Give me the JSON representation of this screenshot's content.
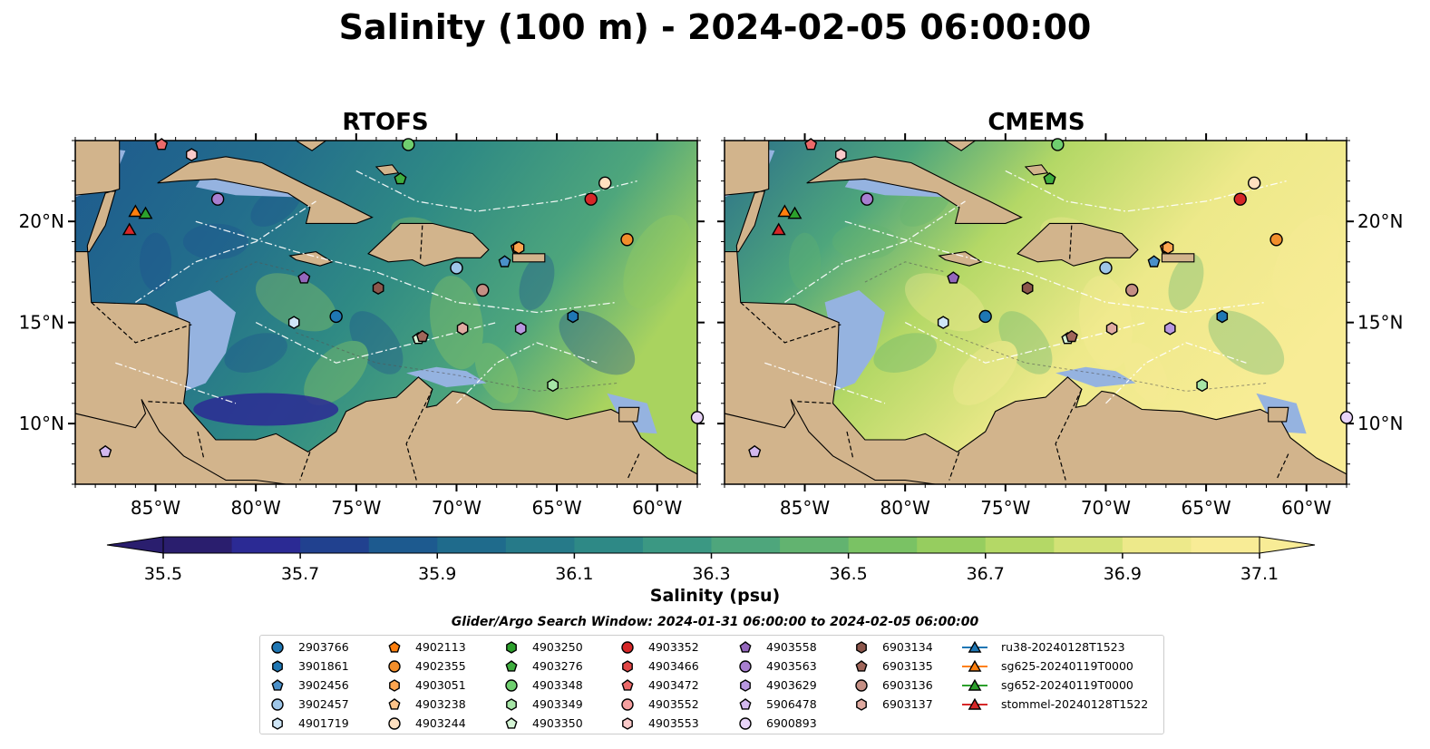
{
  "title": "Salinity (100 m) - 2024-02-05 06:00:00",
  "panels": [
    {
      "title": "RTOFS",
      "side": "left"
    },
    {
      "title": "CMEMS",
      "side": "right"
    }
  ],
  "map_extent": {
    "lon_min": -89,
    "lon_max": -58,
    "lat_min": 7,
    "lat_max": 24
  },
  "axis_ticks": {
    "lon": [
      {
        "value": -85,
        "label": "85°W"
      },
      {
        "value": -80,
        "label": "80°W"
      },
      {
        "value": -75,
        "label": "75°W"
      },
      {
        "value": -70,
        "label": "70°W"
      },
      {
        "value": -65,
        "label": "65°W"
      },
      {
        "value": -60,
        "label": "60°W"
      }
    ],
    "lat": [
      {
        "value": 20,
        "label": "20°N"
      },
      {
        "value": 15,
        "label": "15°N"
      },
      {
        "value": 10,
        "label": "10°N"
      }
    ]
  },
  "colorbar": {
    "title": "Salinity (psu)",
    "vmin": 35.5,
    "vmax": 37.1,
    "ticks": [
      "35.5",
      "35.7",
      "35.9",
      "36.1",
      "36.3",
      "36.5",
      "36.7",
      "36.9",
      "37.1"
    ],
    "colors": [
      "#2a1e6e",
      "#2b2a94",
      "#21418f",
      "#1d5a8f",
      "#1f6b8c",
      "#267a89",
      "#2e8986",
      "#3b9883",
      "#4ea67c",
      "#62b370",
      "#7ac264",
      "#96cd5f",
      "#b4d866",
      "#d2e276",
      "#ede98a",
      "#f8ec96"
    ]
  },
  "colors": {
    "land": "#d2b48c",
    "shelf": "#95b3e0",
    "deep_low": "#2a1a63"
  },
  "legend": {
    "title": "Glider/Argo Search Window: 2024-01-31 06:00:00 to 2024-02-05 06:00:00",
    "columns": [
      [
        {
          "id": "2903766",
          "marker": "circle",
          "color": "#1f77b4"
        },
        {
          "id": "3901861",
          "marker": "hexagon",
          "color": "#1f77b4"
        },
        {
          "id": "3902456",
          "marker": "pentagon",
          "color": "#4a90c9"
        },
        {
          "id": "3902457",
          "marker": "circle",
          "color": "#9ec6e8"
        },
        {
          "id": "4901719",
          "marker": "hexagon",
          "color": "#cfe6f7"
        }
      ],
      [
        {
          "id": "4902113",
          "marker": "pentagon",
          "color": "#ff7f0e"
        },
        {
          "id": "4902355",
          "marker": "circle",
          "color": "#f28e2b"
        },
        {
          "id": "4903051",
          "marker": "hexagon",
          "color": "#ffa54f"
        },
        {
          "id": "4903238",
          "marker": "pentagon",
          "color": "#ffc48a"
        },
        {
          "id": "4903244",
          "marker": "circle",
          "color": "#ffe0c0"
        }
      ],
      [
        {
          "id": "4903250",
          "marker": "hexagon",
          "color": "#2ca02c"
        },
        {
          "id": "4903276",
          "marker": "pentagon",
          "color": "#3fae3f"
        },
        {
          "id": "4903348",
          "marker": "circle",
          "color": "#6fcf6f"
        },
        {
          "id": "4903349",
          "marker": "hexagon",
          "color": "#a6e6a6"
        },
        {
          "id": "4903350",
          "marker": "pentagon",
          "color": "#d5f5d5"
        }
      ],
      [
        {
          "id": "4903352",
          "marker": "circle",
          "color": "#d62728"
        },
        {
          "id": "4903466",
          "marker": "hexagon",
          "color": "#e04545"
        },
        {
          "id": "4903472",
          "marker": "pentagon",
          "color": "#ec6a6a"
        },
        {
          "id": "4903552",
          "marker": "circle",
          "color": "#f5a0a0"
        },
        {
          "id": "4903553",
          "marker": "hexagon",
          "color": "#fbcaca"
        }
      ],
      [
        {
          "id": "4903558",
          "marker": "pentagon",
          "color": "#9467bd"
        },
        {
          "id": "4903563",
          "marker": "circle",
          "color": "#a87fd0"
        },
        {
          "id": "4903629",
          "marker": "hexagon",
          "color": "#b897e0"
        },
        {
          "id": "5906478",
          "marker": "pentagon",
          "color": "#d2b8ee"
        },
        {
          "id": "6900893",
          "marker": "circle",
          "color": "#e8d4f8"
        }
      ],
      [
        {
          "id": "6903134",
          "marker": "hexagon",
          "color": "#8c564b"
        },
        {
          "id": "6903135",
          "marker": "pentagon",
          "color": "#a0665a"
        },
        {
          "id": "6903136",
          "marker": "circle",
          "color": "#c58f84"
        },
        {
          "id": "6903137",
          "marker": "hexagon",
          "color": "#e0aaa0"
        }
      ],
      [
        {
          "id": "ru38-20240128T1523",
          "marker": "triangle-line",
          "color": "#1f77b4"
        },
        {
          "id": "sg625-20240119T0000",
          "marker": "triangle-line",
          "color": "#ff7f0e"
        },
        {
          "id": "sg652-20240119T0000",
          "marker": "triangle-line",
          "color": "#2ca02c"
        },
        {
          "id": "stommel-20240128T1522",
          "marker": "triangle-line",
          "color": "#d62728"
        }
      ]
    ]
  },
  "floats": [
    {
      "lon": -76.0,
      "lat": 15.3,
      "marker": "circle",
      "color": "#1f77b4"
    },
    {
      "lon": -64.2,
      "lat": 15.3,
      "marker": "hexagon",
      "color": "#1f77b4"
    },
    {
      "lon": -67.6,
      "lat": 18.0,
      "marker": "pentagon",
      "color": "#4a90c9"
    },
    {
      "lon": -70.0,
      "lat": 17.7,
      "marker": "circle",
      "color": "#9ec6e8"
    },
    {
      "lon": -78.1,
      "lat": 15.0,
      "marker": "hexagon",
      "color": "#cfe6f7"
    },
    {
      "lon": -67.0,
      "lat": 18.7,
      "marker": "pentagon",
      "color": "#ff7f0e"
    },
    {
      "lon": -61.5,
      "lat": 19.1,
      "marker": "circle",
      "color": "#f28e2b"
    },
    {
      "lon": -66.9,
      "lat": 18.7,
      "marker": "hexagon",
      "color": "#ffa54f"
    },
    {
      "lon": -62.6,
      "lat": 21.9,
      "marker": "circle",
      "color": "#ffe0c0"
    },
    {
      "lon": -72.8,
      "lat": 22.1,
      "marker": "pentagon",
      "color": "#3fae3f"
    },
    {
      "lon": -72.4,
      "lat": 23.8,
      "marker": "circle",
      "color": "#6fcf6f"
    },
    {
      "lon": -65.2,
      "lat": 11.9,
      "marker": "hexagon",
      "color": "#a6e6a6"
    },
    {
      "lon": -71.9,
      "lat": 14.2,
      "marker": "pentagon",
      "color": "#d5f5d5"
    },
    {
      "lon": -63.3,
      "lat": 21.1,
      "marker": "circle",
      "color": "#d62728"
    },
    {
      "lon": -84.7,
      "lat": 23.8,
      "marker": "pentagon",
      "color": "#ec6a6a"
    },
    {
      "lon": -83.2,
      "lat": 23.3,
      "marker": "hexagon",
      "color": "#fbcaca"
    },
    {
      "lon": -77.6,
      "lat": 17.2,
      "marker": "pentagon",
      "color": "#9467bd"
    },
    {
      "lon": -81.9,
      "lat": 21.1,
      "marker": "circle",
      "color": "#a87fd0"
    },
    {
      "lon": -66.8,
      "lat": 14.7,
      "marker": "hexagon",
      "color": "#b897e0"
    },
    {
      "lon": -87.5,
      "lat": 8.6,
      "marker": "pentagon",
      "color": "#d2b8ee"
    },
    {
      "lon": -58.0,
      "lat": 10.3,
      "marker": "circle",
      "color": "#e8d4f8"
    },
    {
      "lon": -73.9,
      "lat": 16.7,
      "marker": "hexagon",
      "color": "#8c564b"
    },
    {
      "lon": -71.7,
      "lat": 14.3,
      "marker": "pentagon",
      "color": "#a0665a"
    },
    {
      "lon": -68.7,
      "lat": 16.6,
      "marker": "circle",
      "color": "#c58f84"
    },
    {
      "lon": -69.7,
      "lat": 14.7,
      "marker": "hexagon",
      "color": "#e0aaa0"
    },
    {
      "lon": -86.0,
      "lat": 20.5,
      "marker": "triangle",
      "color": "#ff7f0e"
    },
    {
      "lon": -85.5,
      "lat": 20.4,
      "marker": "triangle",
      "color": "#2ca02c"
    },
    {
      "lon": -86.3,
      "lat": 19.6,
      "marker": "triangle",
      "color": "#d62728"
    }
  ]
}
